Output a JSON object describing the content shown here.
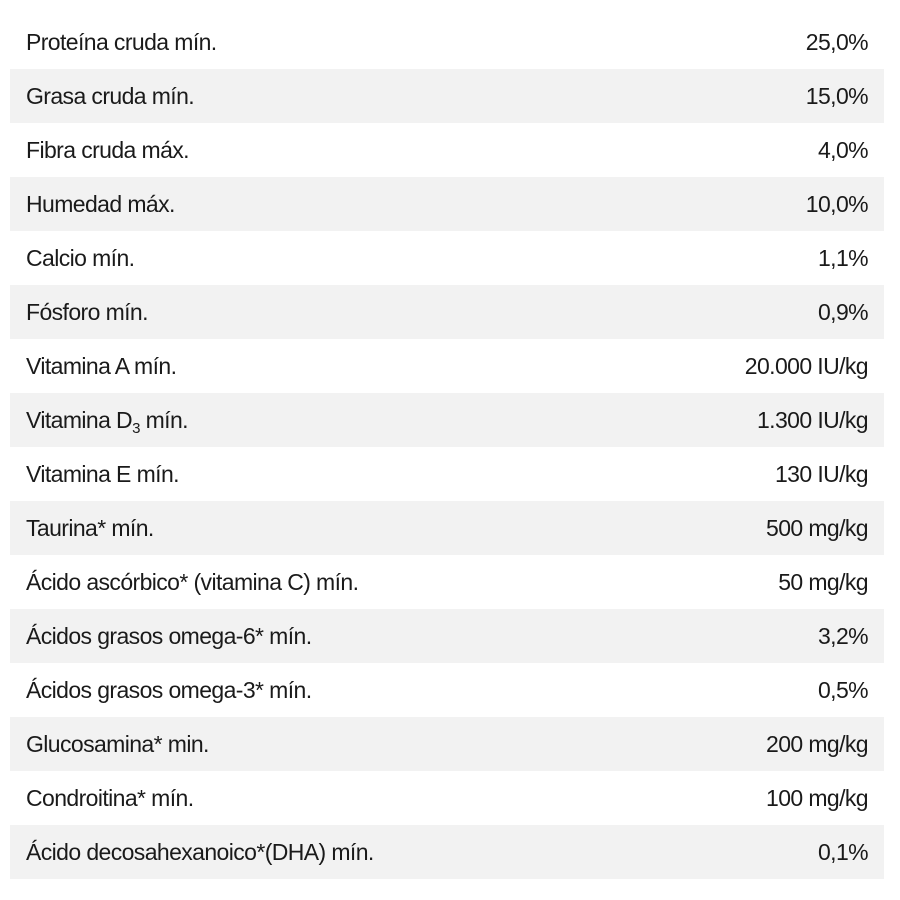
{
  "rows": [
    {
      "label": "Proteína cruda mín.",
      "value": "25,0%"
    },
    {
      "label": "Grasa cruda mín.",
      "value": "15,0%"
    },
    {
      "label": "Fibra cruda máx.",
      "value": "4,0%"
    },
    {
      "label": "Humedad máx.",
      "value": "10,0%"
    },
    {
      "label": "Calcio mín.",
      "value": "1,1%"
    },
    {
      "label": "Fósforo mín.",
      "value": "0,9%"
    },
    {
      "label": "Vitamina A mín.",
      "value": "20.000 IU/kg"
    },
    {
      "label_prefix": "Vitamina D",
      "label_sub": "3",
      "label_suffix": " mín.",
      "value": "1.300 IU/kg"
    },
    {
      "label": "Vitamina E mín.",
      "value": "130 IU/kg"
    },
    {
      "label": "Taurina* mín.",
      "value": "500 mg/kg"
    },
    {
      "label": "Ácido ascórbico* (vitamina C) mín.",
      "value": "50 mg/kg"
    },
    {
      "label": "Ácidos grasos omega-6* mín.",
      "value": "3,2%"
    },
    {
      "label": "Ácidos grasos omega-3* mín.",
      "value": "0,5%"
    },
    {
      "label": "Glucosamina* min.",
      "value": "200 mg/kg"
    },
    {
      "label": "Condroitina* mín.",
      "value": "100 mg/kg"
    },
    {
      "label": "Ácido decosahexanoico*(DHA) mín.",
      "value": "0,1%"
    }
  ],
  "colors": {
    "text": "#1a1a1a",
    "shaded_row": "#f2f2f2",
    "background": "#ffffff"
  }
}
